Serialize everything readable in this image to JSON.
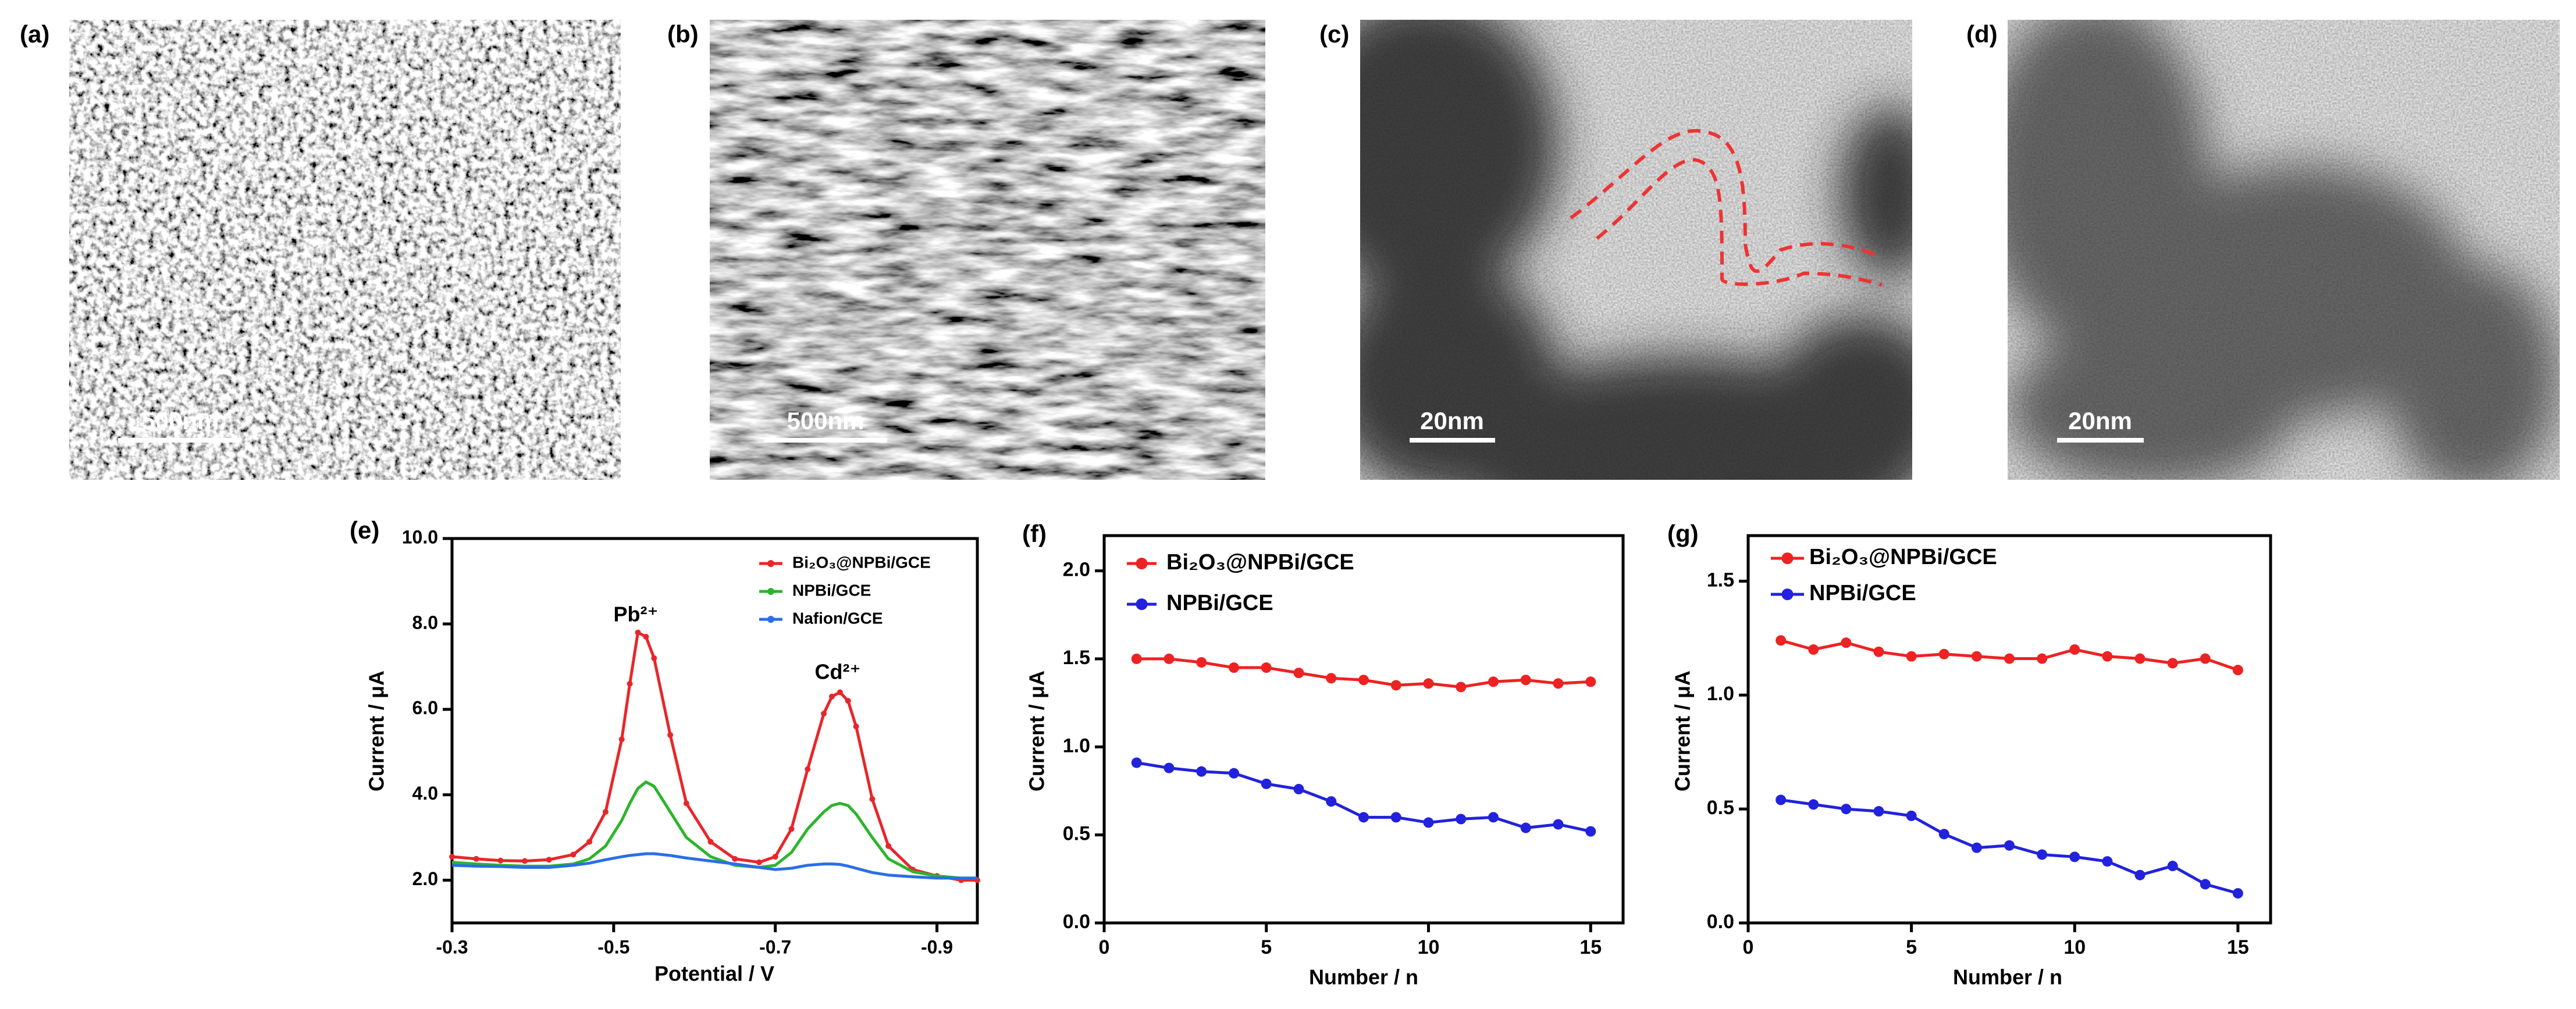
{
  "images": [
    {
      "label": "(a)",
      "scale": "500nm"
    },
    {
      "label": "(b)",
      "scale": "500nm"
    },
    {
      "label": "(c)",
      "scale": "20nm"
    },
    {
      "label": "(d)",
      "scale": "20nm"
    }
  ],
  "chart_data": [
    {
      "type": "line",
      "label": "(e)",
      "xlabel": "Potential / V",
      "ylabel": "Current / μA",
      "xlim": [
        -0.3,
        -0.95
      ],
      "xticks": [
        -0.3,
        -0.5,
        -0.7,
        -0.9
      ],
      "ylim": [
        1,
        10
      ],
      "yticks": [
        {
          "value": 2,
          "label": "2.0"
        },
        {
          "value": 4,
          "label": "4.0"
        },
        {
          "value": 6,
          "label": "6.0"
        },
        {
          "value": 8,
          "label": "8.0"
        },
        {
          "value": 10,
          "label": "10.0"
        }
      ],
      "legend": "upper right",
      "annotations": [
        "Pb²⁺",
        "Cd²⁺"
      ],
      "x": [
        -0.3,
        -0.33,
        -0.36,
        -0.39,
        -0.42,
        -0.45,
        -0.47,
        -0.49,
        -0.51,
        -0.52,
        -0.53,
        -0.54,
        -0.55,
        -0.57,
        -0.59,
        -0.62,
        -0.65,
        -0.68,
        -0.7,
        -0.72,
        -0.74,
        -0.76,
        -0.77,
        -0.78,
        -0.79,
        -0.8,
        -0.82,
        -0.84,
        -0.87,
        -0.9,
        -0.93,
        -0.95
      ],
      "series": [
        {
          "name": "Bi₂O₃@NPBi/GCE",
          "color": "#e8262a",
          "marker": true,
          "values": [
            2.55,
            2.5,
            2.46,
            2.45,
            2.48,
            2.6,
            2.9,
            3.6,
            5.3,
            6.6,
            7.8,
            7.7,
            7.2,
            5.4,
            3.8,
            2.9,
            2.5,
            2.42,
            2.55,
            3.2,
            4.6,
            5.9,
            6.3,
            6.4,
            6.2,
            5.6,
            3.9,
            2.8,
            2.25,
            2.1,
            2.0,
            2.0
          ]
        },
        {
          "name": "NPBi/GCE",
          "color": "#2bb52b",
          "marker": false,
          "values": [
            2.42,
            2.38,
            2.35,
            2.33,
            2.33,
            2.38,
            2.5,
            2.8,
            3.4,
            3.8,
            4.15,
            4.3,
            4.2,
            3.6,
            3.0,
            2.55,
            2.35,
            2.3,
            2.35,
            2.65,
            3.2,
            3.6,
            3.75,
            3.8,
            3.75,
            3.55,
            3.0,
            2.5,
            2.2,
            2.1,
            2.05,
            2.05
          ]
        },
        {
          "name": "Nafion/GCE",
          "color": "#2a6ee8",
          "marker": false,
          "values": [
            2.35,
            2.33,
            2.32,
            2.3,
            2.3,
            2.35,
            2.4,
            2.48,
            2.55,
            2.58,
            2.6,
            2.62,
            2.62,
            2.58,
            2.52,
            2.45,
            2.38,
            2.3,
            2.25,
            2.28,
            2.35,
            2.38,
            2.38,
            2.37,
            2.33,
            2.28,
            2.18,
            2.12,
            2.08,
            2.05,
            2.05,
            2.05
          ]
        }
      ]
    },
    {
      "type": "line",
      "label": "(f)",
      "xlabel": "Number / n",
      "ylabel": "Current / μA",
      "xlim": [
        0,
        16
      ],
      "xticks": [
        0,
        5,
        10,
        15
      ],
      "ylim": [
        0,
        2.2
      ],
      "yticks": [
        {
          "value": 0,
          "label": "0.0"
        },
        {
          "value": 0.5,
          "label": "0.5"
        },
        {
          "value": 1,
          "label": "1.0"
        },
        {
          "value": 1.5,
          "label": "1.5"
        },
        {
          "value": 2,
          "label": "2.0"
        }
      ],
      "legend": "upper left",
      "x": [
        1,
        2,
        3,
        4,
        5,
        6,
        7,
        8,
        9,
        10,
        11,
        12,
        13,
        14,
        15
      ],
      "series": [
        {
          "name": "Bi₂O₃@NPBi/GCE",
          "color": "#ee2222",
          "marker": true,
          "values": [
            1.5,
            1.5,
            1.48,
            1.45,
            1.45,
            1.42,
            1.39,
            1.38,
            1.35,
            1.36,
            1.34,
            1.37,
            1.38,
            1.36,
            1.37
          ]
        },
        {
          "name": "NPBi/GCE",
          "color": "#2222dd",
          "marker": true,
          "values": [
            0.91,
            0.88,
            0.86,
            0.85,
            0.79,
            0.76,
            0.69,
            0.6,
            0.6,
            0.57,
            0.59,
            0.6,
            0.54,
            0.56,
            0.52
          ]
        }
      ]
    },
    {
      "type": "line",
      "label": "(g)",
      "xlabel": "Number / n",
      "ylabel": "Current / μA",
      "xlim": [
        0,
        16
      ],
      "xticks": [
        0,
        5,
        10,
        15
      ],
      "ylim": [
        0,
        1.7
      ],
      "yticks": [
        {
          "value": 0,
          "label": "0.0"
        },
        {
          "value": 0.5,
          "label": "0.5"
        },
        {
          "value": 1,
          "label": "1.0"
        },
        {
          "value": 1.5,
          "label": "1.5"
        }
      ],
      "legend": "upper left",
      "x": [
        1,
        2,
        3,
        4,
        5,
        6,
        7,
        8,
        9,
        10,
        11,
        12,
        13,
        14,
        15
      ],
      "series": [
        {
          "name": "Bi₂O₃@NPBi/GCE",
          "color": "#ee2222",
          "marker": true,
          "values": [
            1.24,
            1.2,
            1.23,
            1.19,
            1.17,
            1.18,
            1.17,
            1.16,
            1.16,
            1.2,
            1.17,
            1.16,
            1.14,
            1.16,
            1.11
          ]
        },
        {
          "name": "NPBi/GCE",
          "color": "#2222dd",
          "marker": true,
          "values": [
            0.54,
            0.52,
            0.5,
            0.49,
            0.47,
            0.39,
            0.33,
            0.34,
            0.3,
            0.29,
            0.27,
            0.21,
            0.25,
            0.17,
            0.13
          ]
        }
      ]
    }
  ]
}
